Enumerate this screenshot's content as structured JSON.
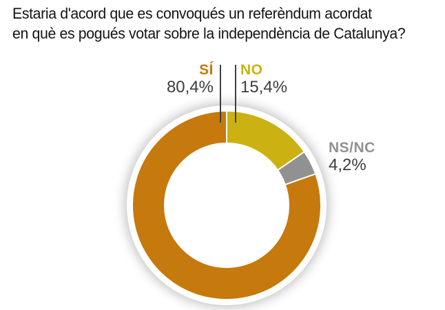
{
  "title": {
    "line1": "Estaria d'acord que es convoqués un referèndum acordat",
    "line2": "en què es pogués votar sobre la independència de Catalunya?"
  },
  "chart_data": {
    "type": "pie",
    "variant": "donut",
    "title": "Estaria d'acord que es convoqués un referèndum acordat en què es pogués votar sobre la independència de Catalunya?",
    "slices": [
      {
        "id": "si",
        "label": "SÍ",
        "value": 80.4,
        "display": "80,4%",
        "color": "#C6790C"
      },
      {
        "id": "no",
        "label": "NO",
        "value": 15.4,
        "display": "15,4%",
        "color": "#CBB212"
      },
      {
        "id": "nsnc",
        "label": "NS/NC",
        "value": 4.2,
        "display": "4,2%",
        "color": "#919191"
      }
    ],
    "clockwise_order_from_top": [
      "no",
      "nsnc",
      "si"
    ],
    "legend_position": "callouts",
    "text_color": "#3C3C3C",
    "separator_color": "#FFFFFF",
    "background_color": "#FFFFFF"
  }
}
